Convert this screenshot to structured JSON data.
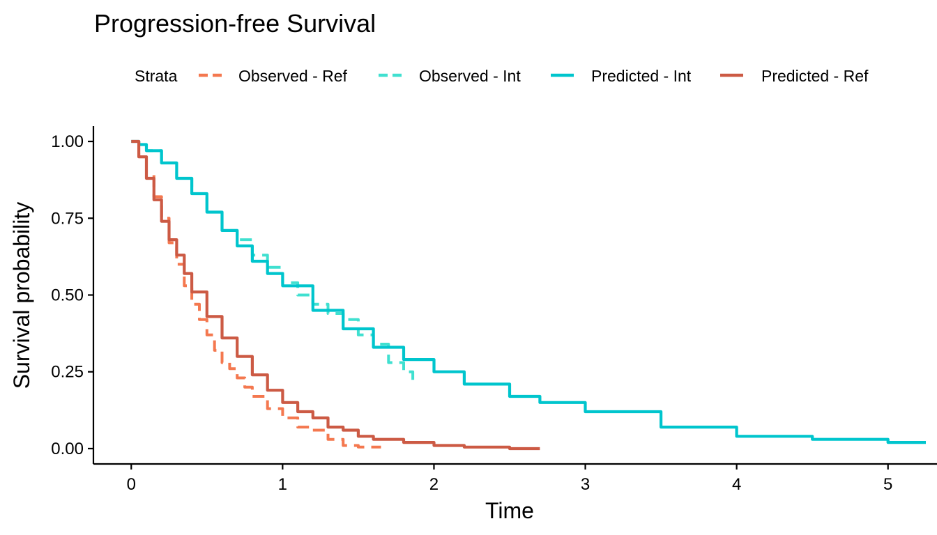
{
  "chart_data": {
    "type": "line",
    "title": "Progression-free Survival",
    "xlabel": "Time",
    "ylabel": "Survival probability",
    "xlim": [
      -0.25,
      5.25
    ],
    "ylim": [
      -0.05,
      1.05
    ],
    "x_ticks": [
      0,
      1,
      2,
      3,
      4,
      5
    ],
    "x_tick_labels": [
      "0",
      "1",
      "2",
      "3",
      "4",
      "5"
    ],
    "y_ticks": [
      0,
      0.25,
      0.5,
      0.75,
      1.0
    ],
    "y_tick_labels": [
      "0.00",
      "0.25",
      "0.50",
      "0.75",
      "1.00"
    ],
    "grid": false,
    "legend": {
      "title": "Strata",
      "position": "top",
      "entries": [
        "Observed - Ref",
        "Observed - Int",
        "Predicted - Int",
        "Predicted - Ref"
      ]
    },
    "series": [
      {
        "name": "Observed - Ref",
        "color": "#F4784F",
        "dashed": true,
        "x": [
          0,
          0.05,
          0.1,
          0.15,
          0.2,
          0.25,
          0.3,
          0.35,
          0.4,
          0.45,
          0.5,
          0.55,
          0.6,
          0.65,
          0.7,
          0.75,
          0.8,
          0.9,
          1.0,
          1.1,
          1.2,
          1.3,
          1.4,
          1.5,
          1.6,
          1.65
        ],
        "y": [
          1.0,
          0.95,
          0.89,
          0.82,
          0.75,
          0.67,
          0.6,
          0.53,
          0.47,
          0.42,
          0.37,
          0.32,
          0.28,
          0.26,
          0.23,
          0.2,
          0.17,
          0.13,
          0.1,
          0.07,
          0.06,
          0.03,
          0.01,
          0.005,
          0.005,
          0.005
        ]
      },
      {
        "name": "Observed - Int",
        "color": "#40E0D0",
        "dashed": true,
        "x": [
          0,
          0.05,
          0.1,
          0.2,
          0.3,
          0.4,
          0.5,
          0.6,
          0.7,
          0.8,
          0.9,
          1.0,
          1.1,
          1.2,
          1.3,
          1.4,
          1.5,
          1.6,
          1.7,
          1.8,
          1.86
        ],
        "y": [
          1.0,
          0.99,
          0.97,
          0.93,
          0.88,
          0.83,
          0.77,
          0.71,
          0.68,
          0.63,
          0.59,
          0.54,
          0.5,
          0.47,
          0.44,
          0.42,
          0.37,
          0.34,
          0.28,
          0.25,
          0.22
        ]
      },
      {
        "name": "Predicted - Int",
        "color": "#00C5CD",
        "dashed": false,
        "x": [
          0,
          0.05,
          0.1,
          0.2,
          0.3,
          0.4,
          0.5,
          0.6,
          0.7,
          0.8,
          0.9,
          1.0,
          1.2,
          1.4,
          1.6,
          1.8,
          2.0,
          2.2,
          2.5,
          2.7,
          3.0,
          3.5,
          4.0,
          4.5,
          5.0,
          5.25
        ],
        "y": [
          1.0,
          0.99,
          0.97,
          0.93,
          0.88,
          0.83,
          0.77,
          0.71,
          0.66,
          0.61,
          0.57,
          0.53,
          0.45,
          0.39,
          0.33,
          0.29,
          0.25,
          0.21,
          0.17,
          0.15,
          0.12,
          0.07,
          0.04,
          0.03,
          0.02,
          0.02
        ]
      },
      {
        "name": "Predicted - Ref",
        "color": "#CC5A44",
        "dashed": false,
        "x": [
          0,
          0.05,
          0.1,
          0.15,
          0.2,
          0.25,
          0.3,
          0.35,
          0.4,
          0.5,
          0.6,
          0.7,
          0.8,
          0.9,
          1.0,
          1.1,
          1.2,
          1.3,
          1.4,
          1.5,
          1.6,
          1.8,
          2.0,
          2.2,
          2.5,
          2.7
        ],
        "y": [
          1.0,
          0.95,
          0.88,
          0.81,
          0.74,
          0.68,
          0.63,
          0.57,
          0.51,
          0.43,
          0.36,
          0.3,
          0.24,
          0.19,
          0.15,
          0.12,
          0.1,
          0.07,
          0.06,
          0.04,
          0.03,
          0.02,
          0.01,
          0.005,
          0.0,
          0.0
        ]
      }
    ]
  }
}
